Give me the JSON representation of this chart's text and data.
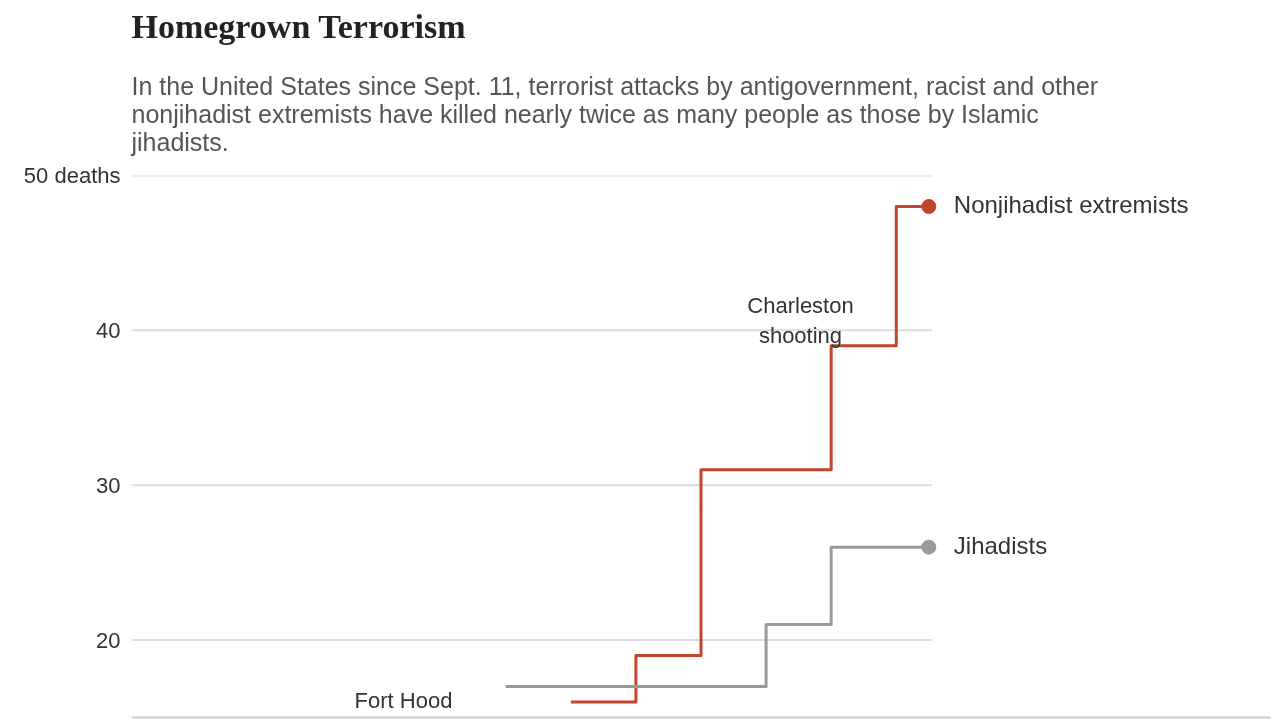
{
  "chart_data": {
    "type": "step",
    "title": "Homegrown Terrorism",
    "subtitle": "In the United States since Sept. 11, terrorist attacks by antigovernment, racist and other nonjihadist extremists have killed nearly twice as many people as those by Islamic jihadists.",
    "categories": [
      null,
      null,
      null,
      null,
      null,
      null,
      null,
      null,
      null,
      null,
      null,
      null,
      null,
      null,
      null,
      null,
      null,
      null,
      null,
      null,
      null,
      null,
      null,
      null,
      null
    ],
    "series": [
      {
        "name": "Nonjihadist extremists",
        "color": "#c0452d",
        "values": [
          null,
          null,
          null,
          null,
          null,
          null,
          null,
          null,
          null,
          null,
          null,
          null,
          null,
          16,
          16,
          19,
          19,
          31,
          31,
          31,
          31,
          39,
          39,
          48,
          48
        ]
      },
      {
        "name": "Jihadists",
        "color": "#999999",
        "values": [
          null,
          null,
          null,
          null,
          null,
          null,
          null,
          null,
          null,
          null,
          null,
          17,
          17,
          17,
          17,
          17,
          17,
          17,
          17,
          21,
          21,
          26,
          26,
          26,
          26
        ]
      }
    ],
    "ylim": [
      15,
      50
    ],
    "yticks": [
      20,
      30,
      40,
      {
        "value": 50,
        "label": "50 deaths"
      }
    ],
    "grid": "y",
    "tick_labels": "y",
    "annotations": [
      "Charleston shooting",
      "Fort Hood"
    ]
  }
}
